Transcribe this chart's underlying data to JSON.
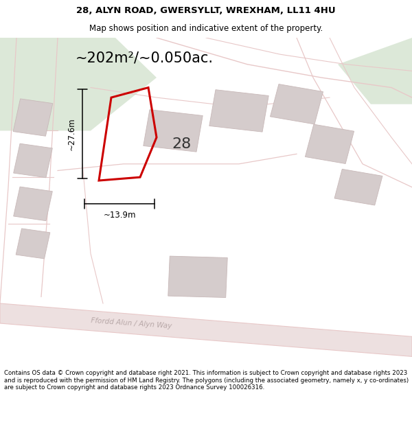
{
  "title": "28, ALYN ROAD, GWERSYLLT, WREXHAM, LL11 4HU",
  "subtitle": "Map shows position and indicative extent of the property.",
  "area_text": "~202m²/~0.050ac.",
  "dim_width": "~13.9m",
  "dim_height": "~27.6m",
  "number_label": "28",
  "footer": "Contains OS data © Crown copyright and database right 2021. This information is subject to Crown copyright and database rights 2023 and is reproduced with the permission of HM Land Registry. The polygons (including the associated geometry, namely x, y co-ordinates) are subject to Crown copyright and database rights 2023 Ordnance Survey 100026316.",
  "map_bg": "#f7f0f0",
  "green_color": "#dce8d8",
  "road_fill": "#ede0e0",
  "road_line": "#e8c8c8",
  "building_color": "#d5cccc",
  "building_edge": "#c8b8b8",
  "property_color": "#cc0000",
  "road_label": "Ffordd Alun / Alyn Way",
  "figsize": [
    6.0,
    6.25
  ],
  "dpi": 100
}
